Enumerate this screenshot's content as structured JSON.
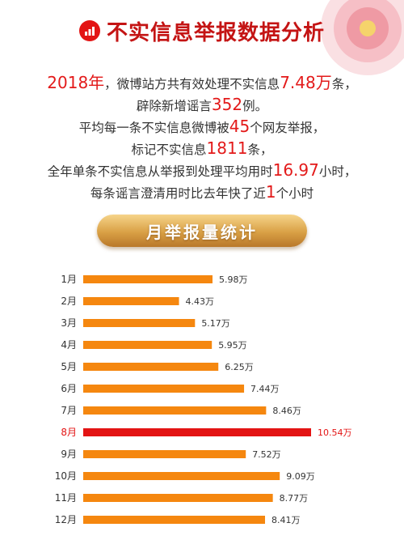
{
  "header": {
    "title": "不实信息举报数据分析"
  },
  "intro": {
    "l1a": "2018年",
    "l1b": "，微博站方共有效处理不实信息",
    "l1c": "7.48万",
    "l1d": "条，",
    "l2a": "辟除新增谣言",
    "l2b": "352",
    "l2c": "例。",
    "l3a": "平均每一条不实信息微博被",
    "l3b": "45",
    "l3c": "个网友举报，",
    "l4a": "标记不实信息",
    "l4b": "1811",
    "l4c": "条，",
    "l5a": "全年单条不实信息从举报到处理平均用时",
    "l5b": "16.97",
    "l5c": "小时，",
    "l6a": "每条谣言澄清用时比去年快了近",
    "l6b": "1",
    "l6c": "个小时"
  },
  "section": {
    "title": "月举报量统计"
  },
  "colors": {
    "bar": "#f5870f",
    "highlight": "#e31414",
    "text": "#333333",
    "highlight_text": "#e31414"
  },
  "chart_data": {
    "type": "bar",
    "orientation": "horizontal",
    "categories": [
      "1月",
      "2月",
      "3月",
      "4月",
      "5月",
      "6月",
      "7月",
      "8月",
      "9月",
      "10月",
      "11月",
      "12月"
    ],
    "values": [
      5.98,
      4.43,
      5.17,
      5.95,
      6.25,
      7.44,
      8.46,
      10.54,
      7.52,
      9.09,
      8.77,
      8.41
    ],
    "value_labels": [
      "5.98万",
      "4.43万",
      "5.17万",
      "5.95万",
      "6.25万",
      "7.44万",
      "8.46万",
      "10.54万",
      "7.52万",
      "9.09万",
      "8.77万",
      "8.41万"
    ],
    "unit": "万",
    "highlight_index": 7,
    "title": "月举报量统计",
    "xlabel": "",
    "ylabel": "",
    "xlim": [
      0,
      10.54
    ],
    "grid": false,
    "legend": "none"
  }
}
